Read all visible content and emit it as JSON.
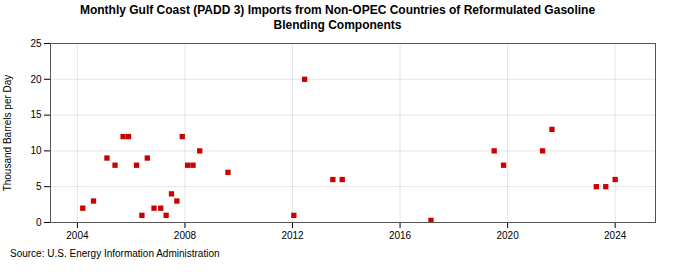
{
  "chart_data": {
    "type": "scatter",
    "title": "Monthly Gulf Coast (PADD 3) Imports from Non-OPEC Countries of Reformulated Gasoline\nBlending Components",
    "ylabel": "Thousand Barrels per Day",
    "source": "Source: U.S. Energy Information Administration",
    "x": [
      2004.2,
      2004.6,
      2005.1,
      2005.4,
      2005.7,
      2005.9,
      2006.2,
      2006.4,
      2006.6,
      2006.85,
      2007.1,
      2007.3,
      2007.5,
      2007.7,
      2007.9,
      2008.1,
      2008.3,
      2008.55,
      2009.6,
      2012.05,
      2012.45,
      2013.5,
      2013.85,
      2017.15,
      2019.5,
      2019.85,
      2021.3,
      2021.65,
      2023.3,
      2023.65,
      2024.0
    ],
    "values": [
      2,
      3,
      9,
      8,
      12,
      12,
      8,
      1,
      9,
      2,
      2,
      1,
      4,
      3,
      12,
      8,
      8,
      10,
      7,
      1,
      20,
      6,
      6,
      0.3,
      10,
      8,
      10,
      13,
      5,
      5,
      6
    ],
    "color": "#cc0000",
    "marker": "square",
    "xlim": [
      2003.0,
      2025.5
    ],
    "ylim": [
      0,
      25
    ],
    "xticks": [
      2004,
      2008,
      2012,
      2016,
      2020,
      2024
    ],
    "yticks": [
      0,
      5,
      10,
      15,
      20,
      25
    ],
    "grid": true
  }
}
